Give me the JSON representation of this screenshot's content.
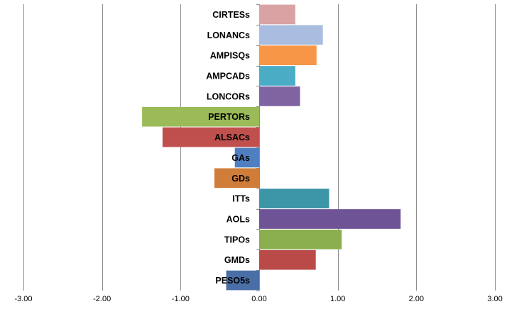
{
  "chart_data": {
    "type": "bar",
    "orientation": "horizontal",
    "categories": [
      "PESO5s",
      "GMDs",
      "TIPOs",
      "AOLs",
      "ITTs",
      "GDs",
      "GAs",
      "ALSACs",
      "PERTORs",
      "LONCORs",
      "AMPCADs",
      "AMPISQs",
      "LONANCs",
      "CIRTESs"
    ],
    "values": [
      -0.42,
      0.72,
      1.05,
      1.8,
      0.89,
      -0.57,
      -0.31,
      -1.23,
      -1.49,
      0.52,
      0.46,
      0.73,
      0.81,
      0.46
    ],
    "colors": [
      "#4a6ea6",
      "#b94a48",
      "#8bae4f",
      "#6e5496",
      "#3d95a8",
      "#d07d3a",
      "#4f7fc0",
      "#c0504d",
      "#9bbb59",
      "#8064a2",
      "#4bacc6",
      "#f79646",
      "#a9bde0",
      "#d9a3a3"
    ],
    "x_ticks": [
      "-3.00",
      "-2.00",
      "-1.00",
      "0.00",
      "1.00",
      "2.00",
      "3.00"
    ],
    "xlim": [
      -3,
      3
    ],
    "grid": "vertical",
    "legend": "none",
    "title": "",
    "xlabel": "",
    "ylabel": ""
  }
}
